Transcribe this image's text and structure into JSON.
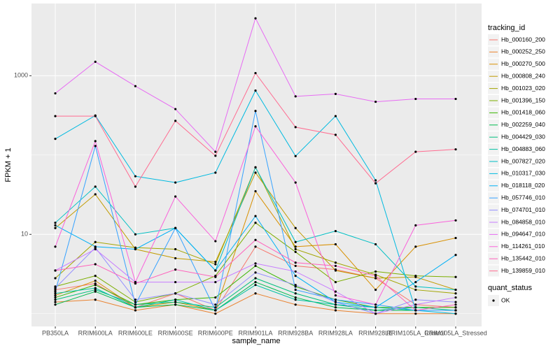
{
  "chart_data": {
    "type": "line",
    "x_label": "sample_name",
    "y_label": "FPKM + 1",
    "categories": [
      "PB350LA",
      "RRIM600LA",
      "RRIM600LE",
      "RRIM600SE",
      "RRIM600PE",
      "RRIM901LA",
      "RRIM928BA",
      "RRIM928LA",
      "RRIM928LE",
      "RRIM105LA_Control",
      "RRIM105LA_Stressed"
    ],
    "yscale": "log",
    "ylim": [
      0.69,
      8150
    ],
    "yticks": [
      10,
      1000
    ],
    "grid": true,
    "legend_title": "tracking_id",
    "legend_position": "right",
    "point_legend_title": "quant_status",
    "point_legend_label": "OK",
    "point_color": "#000000",
    "series": [
      {
        "name": "Hb_000160_200",
        "color": "#F8766D",
        "values": [
          2.0,
          2.4,
          1.2,
          1.8,
          1.1,
          7.0,
          4.0,
          3.6,
          2.8,
          1.3,
          1.2
        ]
      },
      {
        "name": "Hb_000252_250",
        "color": "#EA8331",
        "values": [
          1.4,
          1.5,
          1.1,
          1.3,
          1.0,
          1.8,
          1.3,
          1.1,
          1.0,
          1.0,
          1.0
        ]
      },
      {
        "name": "Hb_000270_500",
        "color": "#D89000",
        "values": [
          1.7,
          2.6,
          1.2,
          1.4,
          1.1,
          35,
          7.0,
          7.5,
          2.0,
          7.0,
          9.0
        ]
      },
      {
        "name": "Hb_000808_240",
        "color": "#C09B00",
        "values": [
          12,
          32,
          6.5,
          5.0,
          4.5,
          60,
          12,
          3.5,
          2.8,
          2.9,
          2.0
        ]
      },
      {
        "name": "Hb_001023_020",
        "color": "#A3A500",
        "values": [
          2.8,
          8,
          6.8,
          6.5,
          4.2,
          70,
          6.5,
          4.4,
          3.1,
          2.0,
          1.8
        ]
      },
      {
        "name": "Hb_001396_150",
        "color": "#7CAE00",
        "values": [
          2.2,
          3.0,
          1.4,
          1.8,
          3.0,
          14,
          6.0,
          2.5,
          3.4,
          3.0,
          2.9
        ]
      },
      {
        "name": "Hb_001418_060",
        "color": "#39B600",
        "values": [
          1.6,
          2.3,
          1.3,
          1.5,
          1.6,
          4.0,
          2.2,
          1.5,
          1.2,
          1.2,
          1.2
        ]
      },
      {
        "name": "Hb_002259_040",
        "color": "#00BB4E",
        "values": [
          1.3,
          1.9,
          1.2,
          1.3,
          1.1,
          2.5,
          1.6,
          1.2,
          1.1,
          1.1,
          1.1
        ]
      },
      {
        "name": "Hb_004429_030",
        "color": "#00BF7D",
        "values": [
          1.5,
          2.0,
          1.3,
          1.4,
          1.2,
          2.8,
          1.8,
          1.3,
          1.1,
          1.2,
          1.1
        ]
      },
      {
        "name": "Hb_004883_060",
        "color": "#00C1A3",
        "values": [
          1.8,
          2.1,
          1.2,
          1.5,
          1.1,
          2.3,
          1.5,
          1.3,
          1.2,
          1.1,
          1.1
        ]
      },
      {
        "name": "Hb_007827_020",
        "color": "#00BFC4",
        "values": [
          14,
          40,
          10,
          12,
          3.5,
          70,
          8,
          11,
          7.5,
          2.2,
          2.0
        ]
      },
      {
        "name": "Hb_010317_030",
        "color": "#00BAE0",
        "values": [
          160,
          315,
          54,
          45,
          60,
          650,
          97,
          310,
          48,
          1.1,
          1.0
        ]
      },
      {
        "name": "Hb_018118_020",
        "color": "#00B0F6",
        "values": [
          13,
          7,
          6.5,
          12,
          3.5,
          17,
          3.0,
          1.4,
          1.2,
          2.5,
          5.5
        ]
      },
      {
        "name": "Hb_057746_010",
        "color": "#35A2FF",
        "values": [
          1.9,
          130,
          1.3,
          12,
          1.1,
          360,
          2.0,
          1.5,
          1.3,
          1.1,
          1.1
        ]
      },
      {
        "name": "Hb_074701_010",
        "color": "#9590FF",
        "values": [
          2.1,
          6.8,
          1.5,
          1.8,
          1.3,
          3.3,
          2.3,
          1.4,
          1.0,
          1.5,
          1.4
        ]
      },
      {
        "name": "Hb_084858_010",
        "color": "#C77CFF",
        "values": [
          3.5,
          6.5,
          2.5,
          2.5,
          2.5,
          4.3,
          3.4,
          1.9,
          1.0,
          1.3,
          1.6
        ]
      },
      {
        "name": "Hb_094647_010",
        "color": "#E76BF3",
        "values": [
          600,
          1500,
          740,
          380,
          110,
          5300,
          550,
          590,
          470,
          510,
          510
        ]
      },
      {
        "name": "Hb_114261_010",
        "color": "#FA62DB",
        "values": [
          7,
          150,
          2.5,
          30,
          8.2,
          230,
          45,
          1.7,
          1.3,
          13,
          15
        ]
      },
      {
        "name": "Hb_135442_010",
        "color": "#FF62BC",
        "values": [
          3.5,
          4.2,
          2.4,
          3.6,
          2.9,
          8.5,
          4.4,
          4.0,
          3.0,
          1.1,
          1.3
        ]
      },
      {
        "name": "Hb_139859_010",
        "color": "#FF6C91",
        "values": [
          310,
          310,
          40,
          270,
          98,
          1080,
          225,
          180,
          44,
          110,
          118
        ]
      }
    ]
  }
}
